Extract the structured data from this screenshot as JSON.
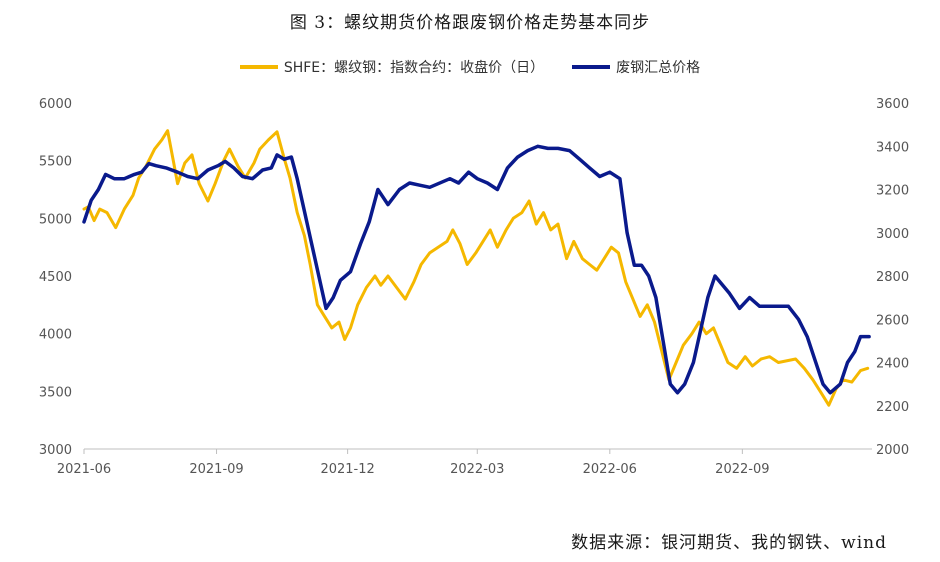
{
  "title": "图 3：螺纹期货价格跟废钢价格走势基本同步",
  "source": "数据来源：银河期货、我的钢铁、wind",
  "chart_data": {
    "type": "line",
    "x_tick_labels": [
      "2021-06",
      "2021-09",
      "2021-12",
      "2022-03",
      "2022-06",
      "2022-09"
    ],
    "x_range": [
      "2021-06-01",
      "2022-11-30"
    ],
    "grid": false,
    "legend_position": "top",
    "left_axis": {
      "ylim": [
        3000,
        6000
      ],
      "ticks": [
        3000,
        3500,
        4000,
        4500,
        5000,
        5500,
        6000
      ]
    },
    "right_axis": {
      "ylim": [
        2000,
        3600
      ],
      "ticks": [
        2000,
        2200,
        2400,
        2600,
        2800,
        3000,
        3200,
        3400,
        3600
      ]
    },
    "series": [
      {
        "name": "SHFE：螺纹钢：指数合约：收盘价（日）",
        "axis": "left",
        "color": "#F5B800",
        "points": [
          [
            "2021-06-01",
            5080
          ],
          [
            "2021-06-04",
            5100
          ],
          [
            "2021-06-08",
            4980
          ],
          [
            "2021-06-12",
            5080
          ],
          [
            "2021-06-17",
            5050
          ],
          [
            "2021-06-23",
            4920
          ],
          [
            "2021-06-29",
            5080
          ],
          [
            "2021-07-05",
            5200
          ],
          [
            "2021-07-09",
            5350
          ],
          [
            "2021-07-14",
            5450
          ],
          [
            "2021-07-20",
            5600
          ],
          [
            "2021-07-25",
            5680
          ],
          [
            "2021-07-29",
            5760
          ],
          [
            "2021-08-02",
            5500
          ],
          [
            "2021-08-05",
            5300
          ],
          [
            "2021-08-10",
            5480
          ],
          [
            "2021-08-15",
            5550
          ],
          [
            "2021-08-20",
            5300
          ],
          [
            "2021-08-26",
            5150
          ],
          [
            "2021-08-31",
            5300
          ],
          [
            "2021-09-06",
            5500
          ],
          [
            "2021-09-10",
            5600
          ],
          [
            "2021-09-16",
            5450
          ],
          [
            "2021-09-21",
            5350
          ],
          [
            "2021-09-27",
            5480
          ],
          [
            "2021-10-01",
            5600
          ],
          [
            "2021-10-07",
            5680
          ],
          [
            "2021-10-13",
            5750
          ],
          [
            "2021-10-18",
            5520
          ],
          [
            "2021-10-22",
            5350
          ],
          [
            "2021-10-27",
            5050
          ],
          [
            "2021-11-01",
            4850
          ],
          [
            "2021-11-05",
            4600
          ],
          [
            "2021-11-10",
            4250
          ],
          [
            "2021-11-15",
            4150
          ],
          [
            "2021-11-20",
            4050
          ],
          [
            "2021-11-25",
            4100
          ],
          [
            "2021-11-29",
            3950
          ],
          [
            "2021-12-03",
            4050
          ],
          [
            "2021-12-08",
            4250
          ],
          [
            "2021-12-14",
            4400
          ],
          [
            "2021-12-20",
            4500
          ],
          [
            "2021-12-24",
            4420
          ],
          [
            "2021-12-29",
            4500
          ],
          [
            "2022-01-04",
            4400
          ],
          [
            "2022-01-10",
            4300
          ],
          [
            "2022-01-16",
            4450
          ],
          [
            "2022-01-21",
            4600
          ],
          [
            "2022-01-27",
            4700
          ],
          [
            "2022-02-08",
            4800
          ],
          [
            "2022-02-12",
            4900
          ],
          [
            "2022-02-17",
            4780
          ],
          [
            "2022-02-22",
            4600
          ],
          [
            "2022-02-28",
            4700
          ],
          [
            "2022-03-05",
            4800
          ],
          [
            "2022-03-10",
            4900
          ],
          [
            "2022-03-15",
            4750
          ],
          [
            "2022-03-21",
            4900
          ],
          [
            "2022-03-26",
            5000
          ],
          [
            "2022-04-01",
            5050
          ],
          [
            "2022-04-06",
            5150
          ],
          [
            "2022-04-11",
            4950
          ],
          [
            "2022-04-16",
            5050
          ],
          [
            "2022-04-21",
            4900
          ],
          [
            "2022-04-26",
            4950
          ],
          [
            "2022-05-02",
            4650
          ],
          [
            "2022-05-07",
            4800
          ],
          [
            "2022-05-13",
            4650
          ],
          [
            "2022-05-18",
            4600
          ],
          [
            "2022-05-23",
            4550
          ],
          [
            "2022-05-28",
            4650
          ],
          [
            "2022-06-02",
            4750
          ],
          [
            "2022-06-07",
            4700
          ],
          [
            "2022-06-12",
            4450
          ],
          [
            "2022-06-17",
            4300
          ],
          [
            "2022-06-22",
            4150
          ],
          [
            "2022-06-27",
            4250
          ],
          [
            "2022-07-02",
            4100
          ],
          [
            "2022-07-07",
            3850
          ],
          [
            "2022-07-12",
            3600
          ],
          [
            "2022-07-17",
            3750
          ],
          [
            "2022-07-22",
            3900
          ],
          [
            "2022-07-28",
            4000
          ],
          [
            "2022-08-02",
            4100
          ],
          [
            "2022-08-07",
            4000
          ],
          [
            "2022-08-12",
            4050
          ],
          [
            "2022-08-17",
            3900
          ],
          [
            "2022-08-22",
            3750
          ],
          [
            "2022-08-28",
            3700
          ],
          [
            "2022-09-03",
            3800
          ],
          [
            "2022-09-08",
            3720
          ],
          [
            "2022-09-14",
            3780
          ],
          [
            "2022-09-20",
            3800
          ],
          [
            "2022-09-26",
            3750
          ],
          [
            "2022-10-08",
            3780
          ],
          [
            "2022-10-14",
            3700
          ],
          [
            "2022-10-20",
            3600
          ],
          [
            "2022-10-26",
            3480
          ],
          [
            "2022-10-31",
            3380
          ],
          [
            "2022-11-05",
            3520
          ],
          [
            "2022-11-10",
            3600
          ],
          [
            "2022-11-16",
            3580
          ],
          [
            "2022-11-22",
            3680
          ],
          [
            "2022-11-27",
            3700
          ]
        ]
      },
      {
        "name": "废钢汇总价格",
        "axis": "right",
        "color": "#0A1A8C",
        "points": [
          [
            "2021-06-01",
            3050
          ],
          [
            "2021-06-06",
            3150
          ],
          [
            "2021-06-11",
            3200
          ],
          [
            "2021-06-16",
            3270
          ],
          [
            "2021-06-22",
            3250
          ],
          [
            "2021-06-29",
            3250
          ],
          [
            "2021-07-06",
            3270
          ],
          [
            "2021-07-11",
            3280
          ],
          [
            "2021-07-16",
            3320
          ],
          [
            "2021-07-21",
            3310
          ],
          [
            "2021-07-28",
            3300
          ],
          [
            "2021-08-05",
            3280
          ],
          [
            "2021-08-12",
            3260
          ],
          [
            "2021-08-19",
            3250
          ],
          [
            "2021-08-26",
            3290
          ],
          [
            "2021-09-02",
            3310
          ],
          [
            "2021-09-07",
            3330
          ],
          [
            "2021-09-13",
            3300
          ],
          [
            "2021-09-19",
            3260
          ],
          [
            "2021-09-26",
            3250
          ],
          [
            "2021-10-03",
            3290
          ],
          [
            "2021-10-09",
            3300
          ],
          [
            "2021-10-13",
            3360
          ],
          [
            "2021-10-18",
            3340
          ],
          [
            "2021-10-23",
            3350
          ],
          [
            "2021-10-27",
            3250
          ],
          [
            "2021-11-01",
            3100
          ],
          [
            "2021-11-06",
            2950
          ],
          [
            "2021-11-11",
            2800
          ],
          [
            "2021-11-16",
            2650
          ],
          [
            "2021-11-21",
            2700
          ],
          [
            "2021-11-26",
            2780
          ],
          [
            "2021-12-03",
            2820
          ],
          [
            "2021-12-10",
            2950
          ],
          [
            "2021-12-16",
            3050
          ],
          [
            "2021-12-22",
            3200
          ],
          [
            "2021-12-29",
            3130
          ],
          [
            "2022-01-06",
            3200
          ],
          [
            "2022-01-13",
            3230
          ],
          [
            "2022-01-20",
            3220
          ],
          [
            "2022-01-27",
            3210
          ],
          [
            "2022-02-10",
            3250
          ],
          [
            "2022-02-16",
            3230
          ],
          [
            "2022-02-23",
            3280
          ],
          [
            "2022-03-01",
            3250
          ],
          [
            "2022-03-08",
            3230
          ],
          [
            "2022-03-15",
            3200
          ],
          [
            "2022-03-22",
            3300
          ],
          [
            "2022-03-29",
            3350
          ],
          [
            "2022-04-05",
            3380
          ],
          [
            "2022-04-12",
            3400
          ],
          [
            "2022-04-19",
            3390
          ],
          [
            "2022-04-26",
            3390
          ],
          [
            "2022-05-04",
            3380
          ],
          [
            "2022-05-11",
            3340
          ],
          [
            "2022-05-18",
            3300
          ],
          [
            "2022-05-25",
            3260
          ],
          [
            "2022-06-01",
            3280
          ],
          [
            "2022-06-08",
            3250
          ],
          [
            "2022-06-13",
            3000
          ],
          [
            "2022-06-18",
            2850
          ],
          [
            "2022-06-23",
            2850
          ],
          [
            "2022-06-28",
            2800
          ],
          [
            "2022-07-03",
            2700
          ],
          [
            "2022-07-08",
            2500
          ],
          [
            "2022-07-13",
            2300
          ],
          [
            "2022-07-18",
            2260
          ],
          [
            "2022-07-23",
            2300
          ],
          [
            "2022-07-29",
            2400
          ],
          [
            "2022-08-03",
            2550
          ],
          [
            "2022-08-08",
            2700
          ],
          [
            "2022-08-13",
            2800
          ],
          [
            "2022-08-18",
            2760
          ],
          [
            "2022-08-23",
            2720
          ],
          [
            "2022-08-30",
            2650
          ],
          [
            "2022-09-06",
            2700
          ],
          [
            "2022-09-13",
            2660
          ],
          [
            "2022-09-22",
            2660
          ],
          [
            "2022-10-03",
            2660
          ],
          [
            "2022-10-10",
            2600
          ],
          [
            "2022-10-16",
            2520
          ],
          [
            "2022-10-22",
            2400
          ],
          [
            "2022-10-27",
            2300
          ],
          [
            "2022-11-01",
            2260
          ],
          [
            "2022-11-08",
            2300
          ],
          [
            "2022-11-13",
            2400
          ],
          [
            "2022-11-18",
            2450
          ],
          [
            "2022-11-22",
            2520
          ],
          [
            "2022-11-28",
            2520
          ]
        ]
      }
    ]
  }
}
